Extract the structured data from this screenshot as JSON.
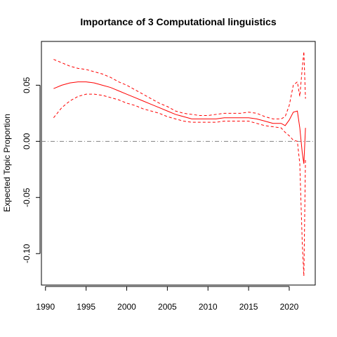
{
  "chart_data": {
    "type": "line",
    "title": "Importance of 3 Computational linguistics",
    "xlabel": "",
    "ylabel": "Expected Topic Proportion",
    "xlim": [
      1989.5,
      2023.2
    ],
    "ylim": [
      -0.128,
      0.089
    ],
    "x_ticks": [
      1990,
      1995,
      2000,
      2005,
      2010,
      2015,
      2020
    ],
    "x_tick_labels": [
      "1990",
      "1995",
      "2000",
      "2005",
      "2010",
      "2015",
      "2020"
    ],
    "y_ticks": [
      -0.1,
      -0.05,
      0.0,
      0.05
    ],
    "y_tick_labels": [
      "-0.10",
      "-0.05",
      "0.00",
      "0.05"
    ],
    "zero_line": 0,
    "grid": false,
    "legend": "none",
    "colors": {
      "series": "#ff0000",
      "reference": "#808080"
    },
    "series": [
      {
        "x": [
          1991,
          1992,
          1993,
          1994,
          1995,
          1996,
          1997,
          1998,
          1999,
          2000,
          2001,
          2002,
          2003,
          2004,
          2005,
          2006,
          2007,
          2008,
          2009,
          2010,
          2011,
          2012,
          2013,
          2014,
          2015,
          2016,
          2017,
          2018,
          2019,
          2019.5,
          2020,
          2020.5,
          2021,
          2021.3,
          2021.6,
          2021.8,
          2022
        ],
        "y": [
          0.047,
          0.05,
          0.052,
          0.053,
          0.053,
          0.052,
          0.05,
          0.048,
          0.045,
          0.042,
          0.039,
          0.036,
          0.033,
          0.03,
          0.027,
          0.024,
          0.022,
          0.02,
          0.02,
          0.02,
          0.02,
          0.021,
          0.021,
          0.021,
          0.021,
          0.02,
          0.018,
          0.016,
          0.016,
          0.014,
          0.019,
          0.026,
          0.027,
          0.012,
          -0.01,
          -0.02,
          0.012
        ]
      },
      {
        "x": [
          1991,
          1992,
          1993,
          1994,
          1995,
          1996,
          1997,
          1998,
          1999,
          2000,
          2001,
          2002,
          2003,
          2004,
          2005,
          2006,
          2007,
          2008,
          2009,
          2010,
          2011,
          2012,
          2013,
          2014,
          2015,
          2016,
          2017,
          2018,
          2019,
          2019.5,
          2020,
          2020.5,
          2021,
          2021.3,
          2021.6,
          2021.8,
          2022
        ],
        "y": [
          0.073,
          0.07,
          0.067,
          0.065,
          0.064,
          0.062,
          0.06,
          0.057,
          0.053,
          0.05,
          0.046,
          0.042,
          0.038,
          0.034,
          0.031,
          0.027,
          0.025,
          0.024,
          0.023,
          0.023,
          0.024,
          0.025,
          0.025,
          0.025,
          0.026,
          0.025,
          0.022,
          0.02,
          0.02,
          0.022,
          0.032,
          0.05,
          0.053,
          0.04,
          0.065,
          0.08,
          0.038
        ]
      },
      {
        "x": [
          1991,
          1992,
          1993,
          1994,
          1995,
          1996,
          1997,
          1998,
          1999,
          2000,
          2001,
          2002,
          2003,
          2004,
          2005,
          2006,
          2007,
          2008,
          2009,
          2010,
          2011,
          2012,
          2013,
          2014,
          2015,
          2016,
          2017,
          2018,
          2019,
          2019.5,
          2020,
          2020.5,
          2021,
          2021.3,
          2021.6,
          2021.8,
          2022
        ],
        "y": [
          0.021,
          0.03,
          0.036,
          0.04,
          0.042,
          0.042,
          0.041,
          0.039,
          0.037,
          0.034,
          0.032,
          0.029,
          0.027,
          0.025,
          0.022,
          0.02,
          0.018,
          0.017,
          0.017,
          0.017,
          0.017,
          0.018,
          0.018,
          0.018,
          0.018,
          0.016,
          0.014,
          0.013,
          0.012,
          0.008,
          0.005,
          0.001,
          0.0,
          -0.02,
          -0.09,
          -0.12,
          -0.015
        ]
      }
    ]
  }
}
